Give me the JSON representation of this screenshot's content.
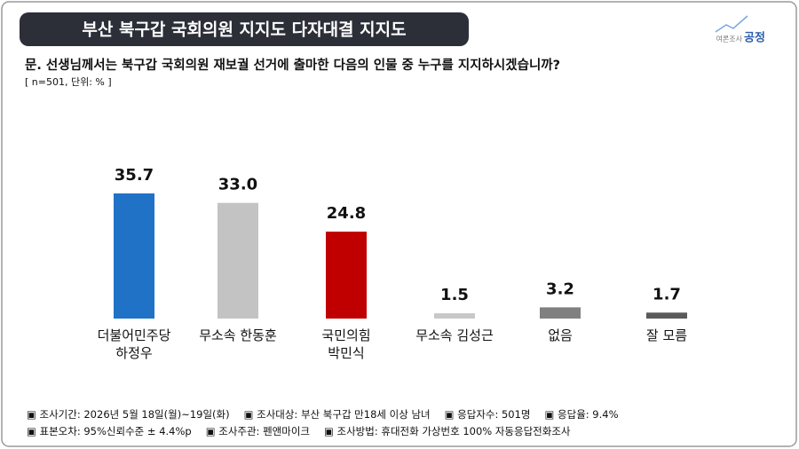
{
  "title": "부산 북구갑 국회의원 지지도 다자대결 지지도",
  "logo": {
    "prefix": "여론조사",
    "name": "공정"
  },
  "question": "문. 선생님께서는 북구갑 국회의원 재보궐 선거에 출마한 다음의 인물 중 누구를 지지하시겠습니까?",
  "note": "[ n=501, 단위: % ]",
  "chart_data": {
    "type": "bar",
    "categories": [
      "더불어민주당\n하정우",
      "무소속 한동훈",
      "국민의힘\n박민식",
      "무소속 김성근",
      "없음",
      "잘 모름"
    ],
    "values": [
      35.7,
      33.0,
      24.8,
      1.5,
      3.2,
      1.7
    ],
    "value_labels": [
      "35.7",
      "33.0",
      "24.8",
      "1.5",
      "3.2",
      "1.7"
    ],
    "colors": [
      "#1f72c6",
      "#c3c3c3",
      "#c00000",
      "#c8c8c8",
      "#808080",
      "#5a5a5a"
    ]
  },
  "footer": [
    [
      "▣ 조사기간: 2026년 5월 18일(월)~19일(화)",
      "▣ 조사대상: 부산 북구갑 만18세 이상 남녀",
      "▣ 응답자수: 501명",
      "▣ 응답율: 9.4%"
    ],
    [
      "▣ 표본오차: 95%신뢰수준 ± 4.4%p",
      "▣ 조사주관: 펜앤마이크",
      "▣ 조사방법: 휴대전화 가상번호 100% 자동응답전화조사"
    ]
  ]
}
